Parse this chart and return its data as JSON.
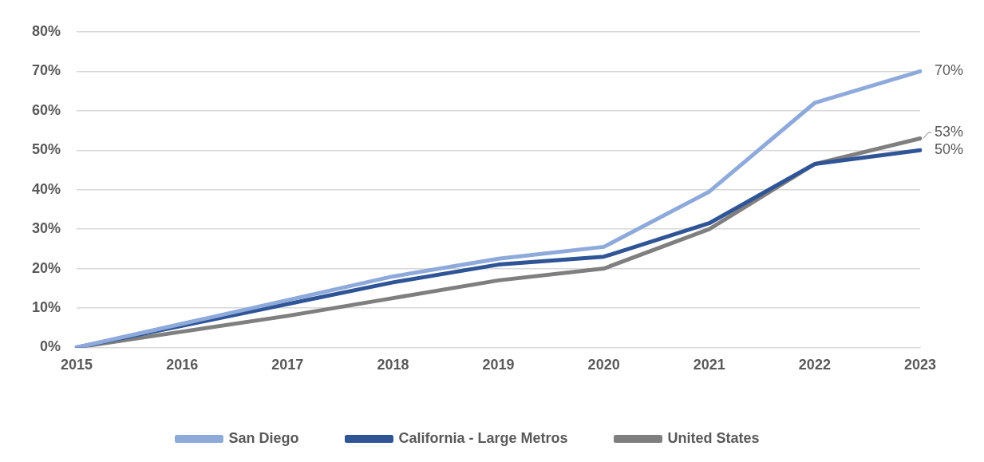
{
  "chart_data": {
    "type": "line",
    "categories": [
      "2015",
      "2016",
      "2017",
      "2018",
      "2019",
      "2020",
      "2021",
      "2022",
      "2023"
    ],
    "series": [
      {
        "name": "San Diego",
        "color": "#8eaadb",
        "values": [
          0,
          6,
          12,
          18,
          22.5,
          25.5,
          39.5,
          62,
          70
        ],
        "value_labels": [
          null,
          null,
          null,
          null,
          null,
          null,
          null,
          null,
          "70%"
        ]
      },
      {
        "name": "California - Large Metros",
        "color": "#2f5597",
        "values": [
          0,
          5.5,
          11,
          16.5,
          21,
          23,
          31.5,
          46.5,
          50
        ],
        "value_labels": [
          null,
          null,
          null,
          null,
          null,
          null,
          null,
          null,
          "50%"
        ]
      },
      {
        "name": "United States",
        "color": "#7f7f7f",
        "values": [
          0,
          4,
          8,
          12.5,
          17,
          20,
          30,
          46.5,
          53
        ],
        "value_labels": [
          null,
          null,
          null,
          null,
          null,
          null,
          null,
          null,
          "53%"
        ]
      }
    ],
    "ylim": [
      0,
      80
    ],
    "yticks": [
      {
        "value": 0,
        "label": "0%"
      },
      {
        "value": 10,
        "label": "10%"
      },
      {
        "value": 20,
        "label": "20%"
      },
      {
        "value": 30,
        "label": "30%"
      },
      {
        "value": 40,
        "label": "40%"
      },
      {
        "value": 50,
        "label": "50%"
      },
      {
        "value": 60,
        "label": "60%"
      },
      {
        "value": 70,
        "label": "70%"
      },
      {
        "value": 80,
        "label": "80%"
      }
    ],
    "grid": "y",
    "legend": "bottom",
    "marker": "none",
    "line_style": "solid"
  }
}
